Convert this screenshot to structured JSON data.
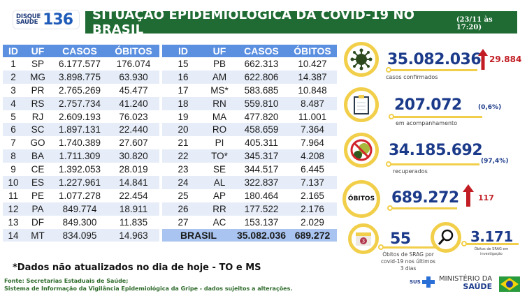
{
  "header": {
    "logo_small_1": "DISQUE",
    "logo_small_2": "SAÚDE",
    "logo_number": "136",
    "title": "SITUAÇÃO EPIDEMIOLÓGICA DA COVID-19 NO BRASIL",
    "datetime": "(23/11 às 17:20)"
  },
  "colors": {
    "title_bg": "#1f6b33",
    "table_header": "#5b8fe0",
    "row_alt": "#e6edf8",
    "total_row": "#a9c4f0",
    "accent_yellow": "#f2cf4a",
    "number_blue": "#1b3a8a",
    "delta_red": "#c21d24"
  },
  "table": {
    "headers": [
      "ID",
      "UF",
      "CASOS",
      "ÓBITOS"
    ],
    "left_rows": [
      {
        "id": "1",
        "uf": "SP",
        "casos": "6.177.577",
        "obitos": "176.074"
      },
      {
        "id": "2",
        "uf": "MG",
        "casos": "3.898.775",
        "obitos": "63.930"
      },
      {
        "id": "3",
        "uf": "PR",
        "casos": "2.765.269",
        "obitos": "45.477"
      },
      {
        "id": "4",
        "uf": "RS",
        "casos": "2.757.734",
        "obitos": "41.240"
      },
      {
        "id": "5",
        "uf": "RJ",
        "casos": "2.609.193",
        "obitos": "76.023"
      },
      {
        "id": "6",
        "uf": "SC",
        "casos": "1.897.131",
        "obitos": "22.440"
      },
      {
        "id": "7",
        "uf": "GO",
        "casos": "1.740.389",
        "obitos": "27.607"
      },
      {
        "id": "8",
        "uf": "BA",
        "casos": "1.711.309",
        "obitos": "30.820"
      },
      {
        "id": "9",
        "uf": "CE",
        "casos": "1.392.053",
        "obitos": "28.019"
      },
      {
        "id": "10",
        "uf": "ES",
        "casos": "1.227.961",
        "obitos": "14.841"
      },
      {
        "id": "11",
        "uf": "PE",
        "casos": "1.077.278",
        "obitos": "22.454"
      },
      {
        "id": "12",
        "uf": "PA",
        "casos": "849.774",
        "obitos": "18.911"
      },
      {
        "id": "13",
        "uf": "DF",
        "casos": "849.300",
        "obitos": "11.835"
      },
      {
        "id": "14",
        "uf": "MT",
        "casos": "834.095",
        "obitos": "14.963"
      }
    ],
    "right_rows": [
      {
        "id": "15",
        "uf": "PB",
        "casos": "662.313",
        "obitos": "10.427"
      },
      {
        "id": "16",
        "uf": "AM",
        "casos": "622.806",
        "obitos": "14.387"
      },
      {
        "id": "17",
        "uf": "MS*",
        "casos": "583.685",
        "obitos": "10.848"
      },
      {
        "id": "18",
        "uf": "RN",
        "casos": "559.810",
        "obitos": "8.487"
      },
      {
        "id": "19",
        "uf": "MA",
        "casos": "477.820",
        "obitos": "11.001"
      },
      {
        "id": "20",
        "uf": "RO",
        "casos": "458.659",
        "obitos": "7.364"
      },
      {
        "id": "21",
        "uf": "PI",
        "casos": "405.311",
        "obitos": "7.964"
      },
      {
        "id": "22",
        "uf": "TO*",
        "casos": "345.317",
        "obitos": "4.208"
      },
      {
        "id": "23",
        "uf": "SE",
        "casos": "344.517",
        "obitos": "6.445"
      },
      {
        "id": "24",
        "uf": "AL",
        "casos": "322.837",
        "obitos": "7.137"
      },
      {
        "id": "25",
        "uf": "AP",
        "casos": "180.464",
        "obitos": "2.165"
      },
      {
        "id": "26",
        "uf": "RR",
        "casos": "177.522",
        "obitos": "2.176"
      },
      {
        "id": "27",
        "uf": "AC",
        "casos": "153.137",
        "obitos": "2.029"
      }
    ],
    "total": {
      "label": "BRASIL",
      "casos": "35.082.036",
      "obitos": "689.272"
    }
  },
  "stats": {
    "confirmed": {
      "value": "35.082.036",
      "delta": "29.884",
      "caption": "casos confirmados",
      "icon": "virus-icon"
    },
    "monitoring": {
      "value": "207.072",
      "pct": "(0,6%)",
      "caption": "em acompanhamento",
      "icon": "clipboard-icon"
    },
    "recovered": {
      "value": "34.185.692",
      "pct": "(97,4%)",
      "caption": "recuperados",
      "icon": "no-virus-icon"
    },
    "deaths": {
      "label": "ÓBITOS",
      "value": "689.272",
      "delta": "117"
    },
    "srag_recent": {
      "value": "55",
      "badge": "3",
      "caption_1": "Óbitos de SRAG por",
      "caption_2": "covid-19 nos últimos",
      "caption_3": "3 dias",
      "icon": "calendar-icon"
    },
    "srag_investigation": {
      "value": "3.171",
      "caption_1": "Óbitos de SRAG em",
      "caption_2": "investigação",
      "icon": "magnifier-icon"
    }
  },
  "footer": {
    "note": "*Dados não atualizados no dia de hoje -  TO e MS",
    "source_1": "Fonte: Secretarias Estaduais de Saúde;",
    "source_2": "Sistema de Informação da Vigilância Epidemiológica da Gripe - dados sujeitos a alterações.",
    "sus": "SUS",
    "ministry_1": "MINISTÉRIO DA",
    "ministry_2": "SAÚDE"
  }
}
